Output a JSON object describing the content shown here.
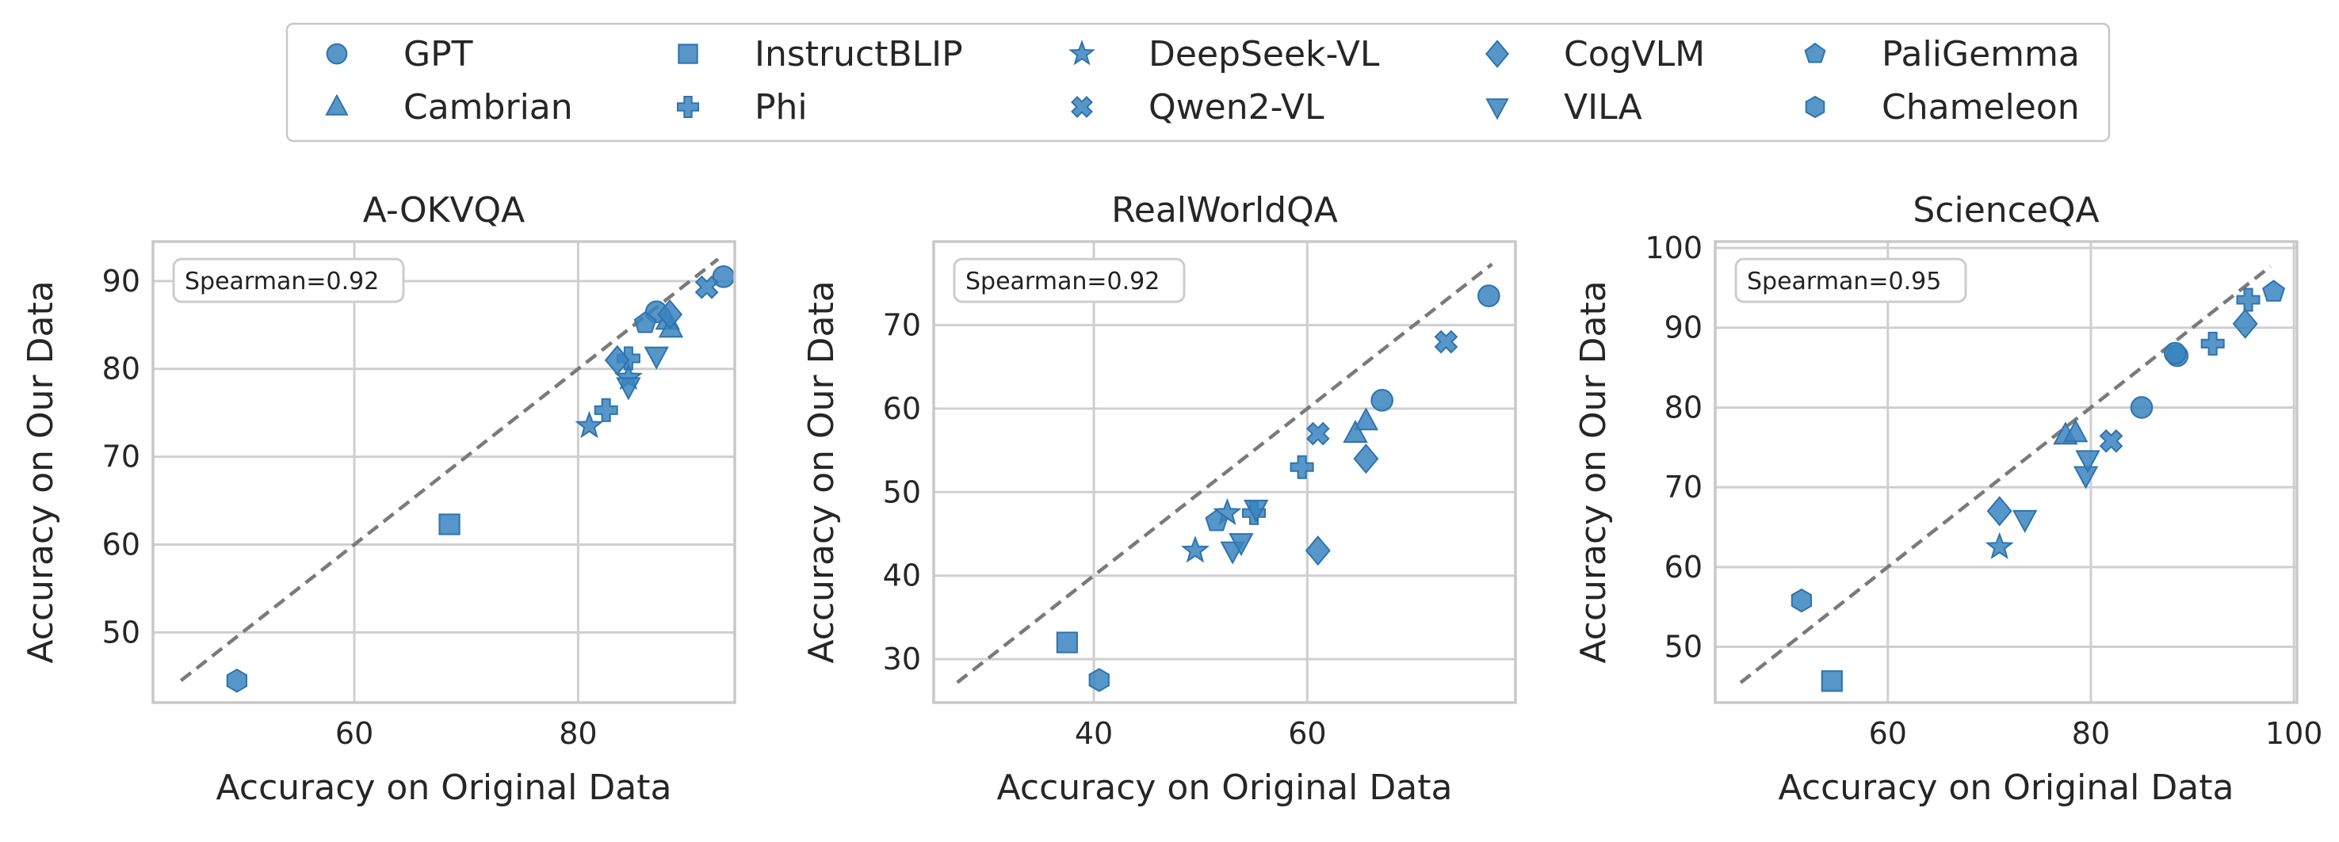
{
  "colors": {
    "marker": "#3a84c0",
    "marker_edge": "#2f73ad",
    "diagonal": "#7a7a7a",
    "grid": "#cfcfcf",
    "frame": "#c8c8c8"
  },
  "legend": {
    "entries": [
      {
        "name": "GPT",
        "marker": "circle"
      },
      {
        "name": "Cambrian",
        "marker": "triangle-up"
      },
      {
        "name": "InstructBLIP",
        "marker": "square"
      },
      {
        "name": "Phi",
        "marker": "plus"
      },
      {
        "name": "DeepSeek-VL",
        "marker": "star"
      },
      {
        "name": "Qwen2-VL",
        "marker": "x"
      },
      {
        "name": "CogVLM",
        "marker": "diamond"
      },
      {
        "name": "VILA",
        "marker": "triangle-down"
      },
      {
        "name": "PaliGemma",
        "marker": "pentagon"
      },
      {
        "name": "Chameleon",
        "marker": "hexagon"
      }
    ],
    "placement": "top-center"
  },
  "chart_data": [
    {
      "type": "scatter",
      "title": "A-OKVQA",
      "xlabel": "Accuracy on Original Data",
      "ylabel": "Accuracy on Our Data",
      "xlim": [
        42,
        94
      ],
      "ylim": [
        42,
        94.5
      ],
      "xticks": [
        60,
        80
      ],
      "yticks": [
        50,
        60,
        70,
        80,
        90
      ],
      "annotation": "Spearman=0.92",
      "grid": true,
      "diagonal": [
        [
          44.5,
          44.5
        ],
        [
          92.5,
          92.5
        ]
      ],
      "points": [
        {
          "m": "GPT",
          "x": 93.0,
          "y": 90.5
        },
        {
          "m": "GPT",
          "x": 87.0,
          "y": 86.5
        },
        {
          "m": "Cambrian",
          "x": 88.0,
          "y": 85.5
        },
        {
          "m": "Cambrian",
          "x": 88.3,
          "y": 84.6
        },
        {
          "m": "InstructBLIP",
          "x": 68.5,
          "y": 62.3
        },
        {
          "m": "Phi",
          "x": 84.5,
          "y": 81.2
        },
        {
          "m": "Phi",
          "x": 82.5,
          "y": 75.3
        },
        {
          "m": "DeepSeek-VL",
          "x": 81.0,
          "y": 73.5
        },
        {
          "m": "DeepSeek-VL",
          "x": 84.5,
          "y": 79.0
        },
        {
          "m": "Qwen2-VL",
          "x": 91.5,
          "y": 89.3
        },
        {
          "m": "CogVLM",
          "x": 83.5,
          "y": 81.0
        },
        {
          "m": "CogVLM",
          "x": 88.2,
          "y": 86.2
        },
        {
          "m": "VILA",
          "x": 87.0,
          "y": 81.5
        },
        {
          "m": "VILA",
          "x": 84.5,
          "y": 78.0
        },
        {
          "m": "PaliGemma",
          "x": 86.0,
          "y": 85.2
        },
        {
          "m": "Chameleon",
          "x": 49.5,
          "y": 44.5
        }
      ]
    },
    {
      "type": "scatter",
      "title": "RealWorldQA",
      "xlabel": "Accuracy on Original Data",
      "ylabel": "Accuracy on Our Data",
      "xlim": [
        25,
        79.5
      ],
      "ylim": [
        24.8,
        80
      ],
      "xticks": [
        40,
        60
      ],
      "yticks": [
        30,
        40,
        50,
        60,
        70
      ],
      "annotation": "Spearman=0.92",
      "grid": true,
      "diagonal": [
        [
          27.2,
          27.2
        ],
        [
          77.3,
          77.3
        ]
      ],
      "points": [
        {
          "m": "GPT",
          "x": 77.0,
          "y": 73.5
        },
        {
          "m": "GPT",
          "x": 67.0,
          "y": 61.0
        },
        {
          "m": "Cambrian",
          "x": 65.5,
          "y": 58.5
        },
        {
          "m": "Cambrian",
          "x": 64.5,
          "y": 57.0
        },
        {
          "m": "InstructBLIP",
          "x": 37.5,
          "y": 32.0
        },
        {
          "m": "Phi",
          "x": 59.5,
          "y": 53.0
        },
        {
          "m": "Phi",
          "x": 55.0,
          "y": 47.5
        },
        {
          "m": "DeepSeek-VL",
          "x": 49.5,
          "y": 43.0
        },
        {
          "m": "DeepSeek-VL",
          "x": 52.5,
          "y": 47.5
        },
        {
          "m": "Qwen2-VL",
          "x": 61.0,
          "y": 57.0
        },
        {
          "m": "Qwen2-VL",
          "x": 73.0,
          "y": 68.0
        },
        {
          "m": "CogVLM",
          "x": 65.5,
          "y": 54.0
        },
        {
          "m": "CogVLM",
          "x": 61.0,
          "y": 43.0
        },
        {
          "m": "VILA",
          "x": 53.0,
          "y": 43.0
        },
        {
          "m": "VILA",
          "x": 53.8,
          "y": 44.0
        },
        {
          "m": "VILA",
          "x": 55.2,
          "y": 48.0
        },
        {
          "m": "PaliGemma",
          "x": 51.5,
          "y": 46.5
        },
        {
          "m": "Chameleon",
          "x": 40.5,
          "y": 27.5
        }
      ]
    },
    {
      "type": "scatter",
      "title": "ScienceQA",
      "xlabel": "Accuracy on Original Data",
      "ylabel": "Accuracy on Our Data",
      "xlim": [
        43,
        100.3
      ],
      "ylim": [
        43,
        100.8
      ],
      "xticks": [
        60,
        80,
        100
      ],
      "yticks": [
        50,
        60,
        70,
        80,
        90,
        100
      ],
      "annotation": "Spearman=0.95",
      "grid": true,
      "diagonal": [
        [
          45.5,
          45.5
        ],
        [
          97.7,
          97.7
        ]
      ],
      "points": [
        {
          "m": "GPT",
          "x": 88.5,
          "y": 86.5
        },
        {
          "m": "GPT",
          "x": 85.0,
          "y": 80.0
        },
        {
          "m": "GPT",
          "x": 88.3,
          "y": 86.8
        },
        {
          "m": "Cambrian",
          "x": 77.5,
          "y": 76.5
        },
        {
          "m": "Cambrian",
          "x": 78.5,
          "y": 76.8
        },
        {
          "m": "InstructBLIP",
          "x": 54.5,
          "y": 45.7
        },
        {
          "m": "Phi",
          "x": 95.5,
          "y": 93.5
        },
        {
          "m": "Phi",
          "x": 92.0,
          "y": 88.0
        },
        {
          "m": "DeepSeek-VL",
          "x": 71.0,
          "y": 62.5
        },
        {
          "m": "Qwen2-VL",
          "x": 82.0,
          "y": 75.8
        },
        {
          "m": "CogVLM",
          "x": 95.2,
          "y": 90.5
        },
        {
          "m": "CogVLM",
          "x": 71.0,
          "y": 67.0
        },
        {
          "m": "VILA",
          "x": 73.5,
          "y": 66.0
        },
        {
          "m": "VILA",
          "x": 79.5,
          "y": 71.5
        },
        {
          "m": "VILA",
          "x": 79.7,
          "y": 73.5
        },
        {
          "m": "PaliGemma",
          "x": 98.0,
          "y": 94.5
        },
        {
          "m": "Chameleon",
          "x": 51.5,
          "y": 55.8
        }
      ]
    }
  ]
}
